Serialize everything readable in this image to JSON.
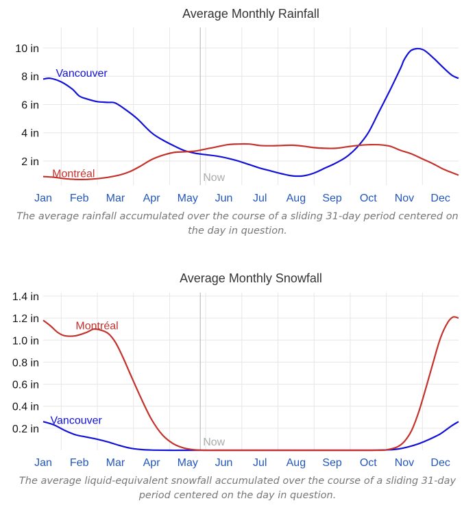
{
  "chart_data": [
    {
      "type": "line",
      "title": "Average Monthly Rainfall",
      "categories": [
        "Jan",
        "Feb",
        "Mar",
        "Apr",
        "May",
        "Jun",
        "Jul",
        "Aug",
        "Sep",
        "Oct",
        "Nov",
        "Dec"
      ],
      "y_ticks": [
        "2 in",
        "4 in",
        "6 in",
        "8 in",
        "10 in"
      ],
      "ylim": [
        0.3,
        11.6
      ],
      "unit": "in",
      "now_label": "Now",
      "now_month": 4.35,
      "series": [
        {
          "name": "Vancouver",
          "color": "#1010d8",
          "label_month": 0.35,
          "label_value": 8.2,
          "x": [
            0,
            0.2,
            0.5,
            0.8,
            1.0,
            1.2,
            1.5,
            1.8,
            2.0,
            2.3,
            2.6,
            3.0,
            3.3,
            3.6,
            3.9,
            4.2,
            4.5,
            4.8,
            5.1,
            5.4,
            5.7,
            6.0,
            6.3,
            6.6,
            6.9,
            7.2,
            7.5,
            7.8,
            8.1,
            8.4,
            8.7,
            9.0,
            9.3,
            9.6,
            9.9,
            10.0,
            10.2,
            10.5,
            10.8,
            11.0,
            11.3,
            11.5
          ],
          "values": [
            7.8,
            7.85,
            7.6,
            7.1,
            6.6,
            6.4,
            6.2,
            6.15,
            6.1,
            5.6,
            5.0,
            4.0,
            3.5,
            3.1,
            2.75,
            2.55,
            2.45,
            2.35,
            2.2,
            2.0,
            1.75,
            1.5,
            1.3,
            1.1,
            0.95,
            0.95,
            1.15,
            1.5,
            1.85,
            2.3,
            3.0,
            4.0,
            5.5,
            7.0,
            8.6,
            9.2,
            9.85,
            9.9,
            9.3,
            8.8,
            8.1,
            7.85
          ]
        },
        {
          "name": "Montréal",
          "color": "#c4312b",
          "label_month": 0.25,
          "label_value": 1.1,
          "x": [
            0,
            0.3,
            0.6,
            0.9,
            1.2,
            1.5,
            1.8,
            2.1,
            2.4,
            2.7,
            3.0,
            3.3,
            3.6,
            3.9,
            4.2,
            4.5,
            4.8,
            5.1,
            5.4,
            5.7,
            6.0,
            6.3,
            6.6,
            6.9,
            7.2,
            7.5,
            7.8,
            8.1,
            8.4,
            8.7,
            9.0,
            9.3,
            9.6,
            9.9,
            10.2,
            10.5,
            10.8,
            11.1,
            11.5
          ],
          "values": [
            0.9,
            0.85,
            0.75,
            0.7,
            0.7,
            0.75,
            0.85,
            1.0,
            1.25,
            1.65,
            2.1,
            2.4,
            2.6,
            2.65,
            2.7,
            2.85,
            3.0,
            3.15,
            3.2,
            3.2,
            3.1,
            3.08,
            3.1,
            3.12,
            3.05,
            2.95,
            2.9,
            2.9,
            3.0,
            3.1,
            3.15,
            3.15,
            3.05,
            2.75,
            2.5,
            2.15,
            1.8,
            1.4,
            1.0
          ]
        }
      ],
      "caption": "The average rainfall accumulated over the course of a sliding 31-day period centered on the day in question."
    },
    {
      "type": "line",
      "title": "Average Monthly Snowfall",
      "categories": [
        "Jan",
        "Feb",
        "Mar",
        "Apr",
        "May",
        "Jun",
        "Jul",
        "Aug",
        "Sep",
        "Oct",
        "Nov",
        "Dec"
      ],
      "y_ticks": [
        "0.2 in",
        "0.4 in",
        "0.6 in",
        "0.8 in",
        "1.0 in",
        "1.2 in",
        "1.4 in"
      ],
      "ylim": [
        0,
        1.4
      ],
      "unit": "in",
      "now_label": "Now",
      "now_month": 4.35,
      "series": [
        {
          "name": "Vancouver",
          "color": "#1010d8",
          "label_month": 0.2,
          "label_value": 0.27,
          "x": [
            0,
            0.3,
            0.6,
            0.9,
            1.2,
            1.5,
            1.8,
            2.1,
            2.4,
            2.7,
            3.0,
            3.5,
            4.0,
            5.0,
            6.0,
            7.0,
            8.0,
            9.0,
            9.5,
            9.8,
            10.1,
            10.4,
            10.7,
            11.0,
            11.3,
            11.5
          ],
          "values": [
            0.26,
            0.23,
            0.18,
            0.14,
            0.12,
            0.1,
            0.075,
            0.045,
            0.02,
            0.007,
            0.002,
            0.0,
            0.0,
            0.0,
            0.0,
            0.0,
            0.0,
            0.0,
            0.003,
            0.01,
            0.03,
            0.06,
            0.1,
            0.15,
            0.22,
            0.26
          ]
        },
        {
          "name": "Montréal",
          "color": "#c4312b",
          "label_month": 0.9,
          "label_value": 1.13,
          "x": [
            0,
            0.2,
            0.4,
            0.6,
            0.9,
            1.2,
            1.4,
            1.6,
            1.8,
            2.0,
            2.2,
            2.4,
            2.7,
            3.0,
            3.3,
            3.6,
            3.9,
            4.2,
            4.5,
            5.0,
            6.0,
            7.0,
            8.0,
            9.0,
            9.3,
            9.5,
            9.8,
            10.0,
            10.2,
            10.4,
            10.6,
            10.8,
            11.0,
            11.2,
            11.35,
            11.5
          ],
          "values": [
            1.18,
            1.13,
            1.07,
            1.04,
            1.04,
            1.07,
            1.1,
            1.09,
            1.06,
            0.98,
            0.85,
            0.7,
            0.48,
            0.28,
            0.14,
            0.06,
            0.02,
            0.004,
            0.0,
            0.0,
            0.0,
            0.0,
            0.0,
            0.0,
            0.0,
            0.004,
            0.03,
            0.08,
            0.18,
            0.35,
            0.57,
            0.8,
            1.02,
            1.16,
            1.21,
            1.2
          ]
        }
      ],
      "caption": "The average liquid-equivalent snowfall accumulated over the course of a sliding 31-day period centered on the day in question."
    }
  ]
}
